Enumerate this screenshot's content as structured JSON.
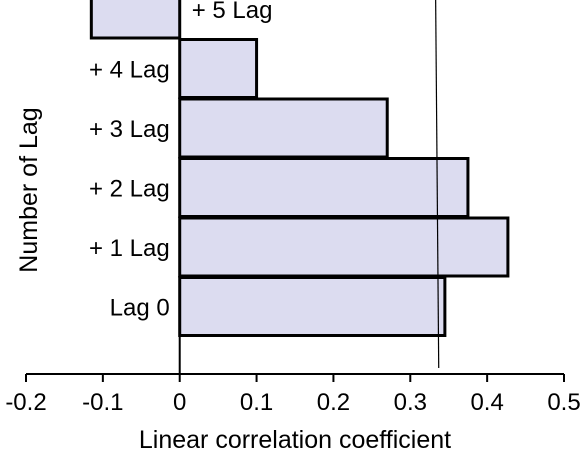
{
  "chart_data": {
    "type": "bar",
    "orientation": "horizontal",
    "title": "",
    "xlabel": "Linear correlation coefficient",
    "ylabel": "Number of Lag",
    "xlim": [
      -0.2,
      0.5
    ],
    "x_ticks": [
      -0.2,
      -0.1,
      0,
      0.1,
      0.2,
      0.3,
      0.4,
      0.5
    ],
    "x_tick_labels": [
      "-0.2",
      "-0.1",
      "0",
      "0.1",
      "0.2",
      "0.3",
      "0.4",
      "0.5"
    ],
    "categories": [
      "+ 5 Lag",
      "+ 4 Lag",
      "+ 3 Lag",
      "+ 2 Lag",
      "+ 1 Lag",
      "Lag 0"
    ],
    "values": [
      -0.115,
      0.1,
      0.27,
      0.375,
      0.427,
      0.345
    ],
    "bar_color": "#dcdcf0",
    "bar_edge_color": "#000000",
    "reference_line": {
      "x_at_top": 0.333,
      "x_at_bottom": 0.337
    },
    "grid": false,
    "legend": "none"
  }
}
